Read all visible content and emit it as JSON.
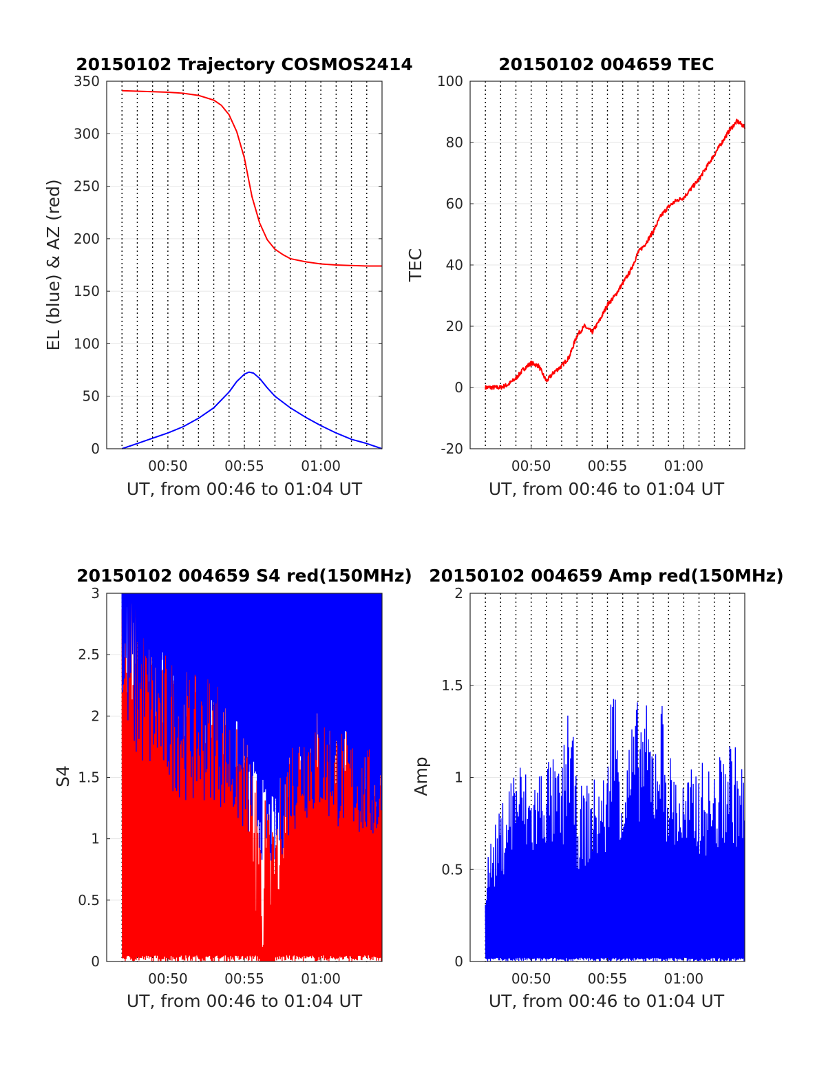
{
  "figure": {
    "x_tick_labels": [
      "00:50",
      "00:55",
      "01:00"
    ],
    "colors": {
      "red": "#ff0000",
      "blue": "#0000ff",
      "grid": "#e6e6e6",
      "axis": "#262626"
    }
  },
  "chart_data": [
    {
      "id": "trajectory",
      "type": "line",
      "title": "20150102 Trajectory COSMOS2414",
      "xlabel": "UT, from 00:46 to 01:04 UT",
      "ylabel": "EL (blue) & AZ (red)",
      "xlim": [
        "00:46",
        "01:04"
      ],
      "ylim": [
        0,
        350
      ],
      "yticks": [
        "0",
        "50",
        "100",
        "150",
        "200",
        "250",
        "300",
        "350"
      ],
      "grid": "horizontal solid, vertical dotted every 1 min",
      "series": [
        {
          "color": "#ff0000",
          "x": [
            "00:47",
            "00:48",
            "00:49",
            "00:50",
            "00:51",
            "00:52",
            "00:53",
            "00:53.5",
            "00:54",
            "00:54.5",
            "00:55",
            "00:55.5",
            "00:56",
            "00:56.5",
            "00:57",
            "00:57.5",
            "00:58",
            "00:59",
            "01:00",
            "01:01",
            "01:02",
            "01:03",
            "01:04"
          ],
          "values": [
            341,
            340.5,
            340,
            339.5,
            338.5,
            336.5,
            332,
            327,
            318,
            302,
            277,
            240,
            215,
            199,
            190,
            185,
            181,
            178,
            176,
            175,
            174.5,
            174,
            174
          ]
        },
        {
          "color": "#0000ff",
          "x": [
            "00:47",
            "00:48",
            "00:49",
            "00:50",
            "00:51",
            "00:52",
            "00:53",
            "00:54",
            "00:54.5",
            "00:55",
            "00:55.3",
            "00:55.6",
            "00:56",
            "00:56.5",
            "00:57",
            "00:58",
            "00:59",
            "01:00",
            "01:01",
            "01:02",
            "01:03",
            "01:04"
          ],
          "values": [
            0,
            5,
            10,
            15,
            21,
            29,
            39,
            54,
            64,
            71,
            73,
            72,
            67,
            58,
            50,
            39,
            30,
            22,
            15,
            9,
            5,
            0
          ]
        }
      ]
    },
    {
      "id": "tec",
      "type": "line",
      "title": "20150102 004659 TEC",
      "xlabel": "UT, from 00:46 to 01:04 UT",
      "ylabel": "TEC",
      "xlim": [
        "00:46",
        "01:04"
      ],
      "ylim": [
        -20,
        100
      ],
      "yticks": [
        "-20",
        "0",
        "20",
        "40",
        "60",
        "80",
        "100"
      ],
      "grid": "horizontal solid, vertical dotted every 1 min",
      "series": [
        {
          "color": "#ff0000",
          "x": [
            "00:47",
            "00:48",
            "00:48.5",
            "00:49",
            "00:49.5",
            "00:50",
            "00:50.5",
            "00:51",
            "00:51.5",
            "00:52",
            "00:52.5",
            "00:53",
            "00:53.5",
            "00:54",
            "00:54.5",
            "00:55",
            "00:55.5",
            "00:56",
            "00:56.5",
            "00:57",
            "00:57.5",
            "00:58",
            "00:58.5",
            "00:59",
            "00:59.5",
            "01:00",
            "01:00.5",
            "01:01",
            "01:01.5",
            "01:02",
            "01:02.5",
            "01:03",
            "01:03.5",
            "01:04"
          ],
          "values": [
            0,
            0,
            1,
            3,
            6,
            8,
            7,
            2,
            5,
            7,
            10,
            17,
            20,
            18,
            22,
            27,
            30,
            34,
            38,
            44,
            47,
            51,
            56,
            59,
            61,
            62,
            65,
            68,
            72,
            76,
            80,
            84,
            87,
            85
          ]
        }
      ]
    },
    {
      "id": "s4",
      "type": "line",
      "title": "20150102 004659 S4 red(150MHz)",
      "xlabel": "UT, from 00:46 to 01:04 UT",
      "ylabel": "S4",
      "xlim": [
        "00:46",
        "01:04"
      ],
      "ylim": [
        0,
        3
      ],
      "yticks": [
        "0",
        "0.5",
        "1",
        "1.5",
        "2",
        "2.5",
        "3"
      ],
      "grid": "horizontal solid, vertical dotted every 1 min",
      "series": [
        {
          "color": "#ff0000",
          "x": [
            "00:47",
            "00:48",
            "00:49",
            "00:50",
            "00:51",
            "00:52",
            "00:53",
            "00:54",
            "00:55",
            "00:56",
            "00:57",
            "00:58",
            "00:59",
            "01:00",
            "01:01",
            "01:02",
            "01:03",
            "01:04"
          ],
          "values": [
            2.2,
            2.1,
            2.0,
            1.9,
            1.8,
            1.7,
            1.8,
            1.6,
            1.5,
            0.0,
            0.0,
            1.5,
            1.6,
            1.5,
            1.4,
            1.4,
            1.3,
            1.2
          ]
        },
        {
          "color": "#0000ff",
          "x": [
            "00:47",
            "00:48",
            "00:49",
            "00:50",
            "00:51",
            "00:52",
            "00:53",
            "00:54",
            "00:55",
            "00:56",
            "00:57",
            "00:58",
            "00:59",
            "01:00",
            "01:01",
            "01:02",
            "01:03",
            "01:04"
          ],
          "values": [
            3.0,
            2.6,
            2.4,
            2.3,
            2.2,
            2.1,
            2.2,
            1.9,
            1.7,
            1.4,
            1.2,
            1.7,
            1.9,
            1.9,
            1.8,
            1.7,
            1.6,
            1.5
          ]
        }
      ]
    },
    {
      "id": "amp",
      "type": "line",
      "title": "20150102 004659 Amp red(150MHz)",
      "xlabel": "UT, from 00:46 to 01:04 UT",
      "ylabel": "Amp",
      "xlim": [
        "00:46",
        "01:04"
      ],
      "ylim": [
        0,
        2
      ],
      "yticks": [
        "0",
        "0.5",
        "1",
        "1.5",
        "2"
      ],
      "grid": "horizontal solid, vertical dotted every 1 min",
      "series": [
        {
          "color": "#0000ff",
          "x": [
            "00:47",
            "00:48",
            "00:49",
            "00:50",
            "00:51",
            "00:52",
            "00:52.5",
            "00:53",
            "00:54",
            "00:55",
            "00:55.3",
            "00:56",
            "00:57",
            "00:57.5",
            "00:58",
            "00:58.5",
            "00:59",
            "01:00",
            "01:01",
            "01:02",
            "01:03",
            "01:04"
          ],
          "values": [
            0.55,
            0.8,
            1.1,
            0.95,
            1.1,
            1.0,
            1.45,
            0.9,
            0.95,
            1.0,
            1.62,
            1.05,
            1.37,
            1.35,
            1.2,
            1.42,
            1.1,
            0.95,
            1.05,
            1.0,
            1.2,
            1.0
          ]
        }
      ]
    }
  ]
}
